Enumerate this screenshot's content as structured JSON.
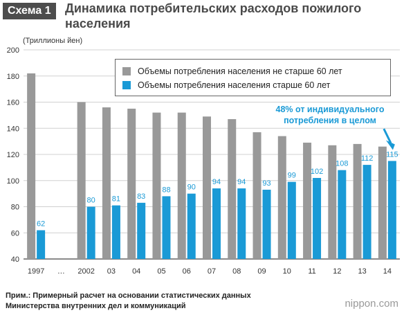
{
  "header": {
    "badge": "Схема 1",
    "title": "Динамика потребительских расходов пожилого населения"
  },
  "chart_data": {
    "type": "bar",
    "categories": [
      "1997",
      "…",
      "2002",
      "03",
      "04",
      "05",
      "06",
      "07",
      "08",
      "09",
      "10",
      "11",
      "12",
      "13",
      "14"
    ],
    "series": [
      {
        "name": "Объемы потребления населения не старше 60 лет",
        "color": "#999999",
        "values": [
          182,
          null,
          160,
          156,
          155,
          152,
          152,
          149,
          147,
          137,
          134,
          129,
          127,
          128,
          126
        ],
        "labels": false
      },
      {
        "name": "Объемы потребления населения старше 60 лет",
        "color": "#1a9ad6",
        "values": [
          62,
          null,
          80,
          81,
          83,
          88,
          90,
          94,
          94,
          93,
          99,
          102,
          108,
          112,
          115
        ],
        "labels": true
      }
    ],
    "ylabel": "(Триллионы йен)",
    "ylim": [
      40,
      200
    ],
    "yticks": [
      40,
      60,
      80,
      100,
      120,
      140,
      160,
      180,
      200
    ],
    "grid": true,
    "legend": "top-right",
    "annotation": "48% от индивидуального потребления в целом"
  },
  "footer": {
    "note_line1": "Прим.: Примерный расчет на основании статистических данных",
    "note_line2": "Министерства внутренних дел и коммуникаций",
    "brand": "nippon.com"
  }
}
